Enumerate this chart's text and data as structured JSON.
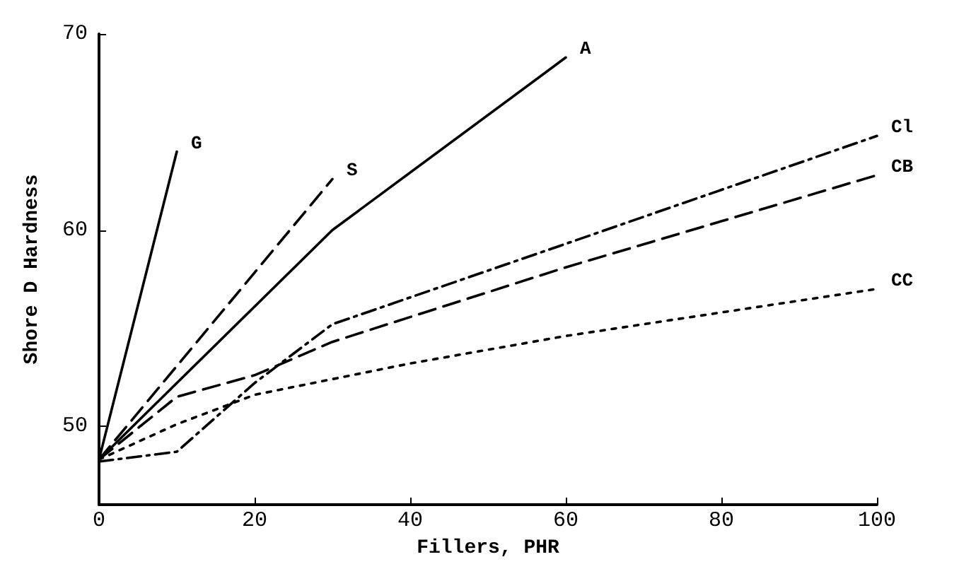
{
  "chart_data": {
    "type": "line",
    "xlabel": "Fillers, PHR",
    "ylabel": "Shore D Hardness",
    "xlim": [
      0,
      100
    ],
    "xticks": [
      0,
      20,
      40,
      60,
      80,
      100
    ],
    "ylim": [
      46,
      70
    ],
    "yticks": [
      50,
      60,
      70
    ],
    "grid": false,
    "legend": false,
    "marker": "none",
    "series": [
      {
        "name": "G",
        "color": "#000000",
        "line_style": "solid",
        "x": [
          0,
          10
        ],
        "values": [
          48.3,
          64
        ]
      },
      {
        "name": "S",
        "color": "#000000",
        "line_style": "dashed",
        "x": [
          0,
          30
        ],
        "values": [
          48.3,
          62.6
        ]
      },
      {
        "name": "A",
        "color": "#000000",
        "line_style": "solid",
        "x": [
          0,
          30,
          60
        ],
        "values": [
          48.3,
          60,
          68.8
        ]
      },
      {
        "name": "Cl",
        "color": "#000000",
        "line_style": "dashdot",
        "x": [
          0,
          10,
          20,
          30,
          60,
          100
        ],
        "values": [
          48.2,
          48.7,
          52.2,
          55.2,
          59.3,
          64.8
        ]
      },
      {
        "name": "CB",
        "color": "#000000",
        "line_style": "dashed",
        "x": [
          0,
          10,
          20,
          30,
          60,
          100
        ],
        "values": [
          48.3,
          51.5,
          52.6,
          54.3,
          58.1,
          62.8
        ]
      },
      {
        "name": "CC",
        "color": "#000000",
        "line_style": "dotted",
        "x": [
          0,
          10,
          20,
          40,
          60,
          100
        ],
        "values": [
          48.3,
          50.1,
          51.6,
          53.2,
          54.6,
          57
        ]
      }
    ]
  }
}
